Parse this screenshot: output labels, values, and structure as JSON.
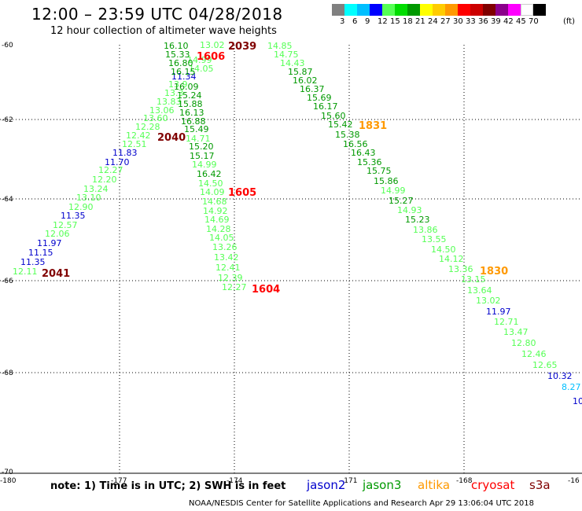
{
  "header": {
    "title": "12:00 – 23:59 UTC 04/28/2018",
    "subtitle": "12 hour collection of altimeter wave heights"
  },
  "legend": {
    "colors": [
      "#808080",
      "#00ffff",
      "#00bfff",
      "#0000ff",
      "#55ff55",
      "#00dd00",
      "#009900",
      "#ffff00",
      "#ffcc00",
      "#ff9900",
      "#ff0000",
      "#cc0000",
      "#800000",
      "#8b008b",
      "#ff00ff",
      "#ffffff",
      "#000000"
    ],
    "labels": [
      "3",
      "6",
      "9",
      "12",
      "15",
      "18",
      "21",
      "24",
      "27",
      "30",
      "33",
      "36",
      "39",
      "42",
      "45",
      "70",
      "(ft)"
    ]
  },
  "axes": {
    "lat_labels": [
      "-60",
      "-62",
      "-64",
      "-66",
      "-68",
      "-70"
    ],
    "lon_labels": [
      "-180",
      "-177",
      "-174",
      "-171",
      "-168",
      "-16"
    ]
  },
  "footer": {
    "note": "note: 1) Time is in UTC; 2) SWH is in feet",
    "satellites": [
      {
        "name": "jason2",
        "color": "#0000cc"
      },
      {
        "name": "jason3",
        "color": "#009900"
      },
      {
        "name": "altika",
        "color": "#ff9900"
      },
      {
        "name": "cryosat",
        "color": "#ff0000"
      },
      {
        "name": "s3a",
        "color": "#800000"
      }
    ],
    "credit": "NOAA/NESDIS Center for Satellite Applications and Research    Apr 29 13:06:04 UTC 2018"
  },
  "time_labels": [
    {
      "text": "2039",
      "color": "#800000"
    },
    {
      "text": "1606",
      "color": "#ff0000"
    },
    {
      "text": "2040",
      "color": "#800000"
    },
    {
      "text": "1605",
      "color": "#ff0000"
    },
    {
      "text": "1831",
      "color": "#ff9900"
    },
    {
      "text": "2041",
      "color": "#800000"
    },
    {
      "text": "1604",
      "color": "#ff0000"
    },
    {
      "text": "1830",
      "color": "#ff9900"
    }
  ],
  "track_a": {
    "name": "s3a pass 2039-2041",
    "values": [
      {
        "v": "13.02",
        "c": "#55ff55"
      },
      {
        "v": "14.99",
        "c": "#55ff55"
      },
      {
        "v": "14.05",
        "c": "#55ff55"
      },
      {
        "v": "11.34",
        "c": "#0000cc"
      },
      {
        "v": "13.9",
        "c": "#55ff55"
      },
      {
        "v": "13.3",
        "c": "#55ff55"
      },
      {
        "v": "13.83",
        "c": "#55ff55"
      },
      {
        "v": "13.06",
        "c": "#55ff55"
      },
      {
        "v": "13.60",
        "c": "#55ff55"
      },
      {
        "v": "12.28",
        "c": "#55ff55"
      },
      {
        "v": "12.42",
        "c": "#55ff55"
      },
      {
        "v": "12.51",
        "c": "#55ff55"
      },
      {
        "v": "11.83",
        "c": "#0000cc"
      },
      {
        "v": "11.70",
        "c": "#0000cc"
      },
      {
        "v": "12.27",
        "c": "#55ff55"
      },
      {
        "v": "12.20",
        "c": "#55ff55"
      },
      {
        "v": "13.24",
        "c": "#55ff55"
      },
      {
        "v": "13.10",
        "c": "#55ff55"
      },
      {
        "v": "12.90",
        "c": "#55ff55"
      },
      {
        "v": "11.35",
        "c": "#0000cc"
      },
      {
        "v": "12.57",
        "c": "#55ff55"
      },
      {
        "v": "12.06",
        "c": "#55ff55"
      },
      {
        "v": "11.97",
        "c": "#0000cc"
      },
      {
        "v": "11.15",
        "c": "#0000cc"
      },
      {
        "v": "11.35",
        "c": "#0000cc"
      },
      {
        "v": "12.11",
        "c": "#55ff55"
      }
    ]
  },
  "track_b": {
    "name": "jason3 pass 1604-1606",
    "values": [
      {
        "v": "16.10",
        "c": "#009900"
      },
      {
        "v": "15.33",
        "c": "#009900"
      },
      {
        "v": "16.80",
        "c": "#009900"
      },
      {
        "v": "16.15",
        "c": "#009900"
      },
      {
        "v": "16.09",
        "c": "#009900"
      },
      {
        "v": "15.24",
        "c": "#009900"
      },
      {
        "v": "15.88",
        "c": "#009900"
      },
      {
        "v": "16.13",
        "c": "#009900"
      },
      {
        "v": "16.88",
        "c": "#009900"
      },
      {
        "v": "15.49",
        "c": "#009900"
      },
      {
        "v": "14.71",
        "c": "#55ff55"
      },
      {
        "v": "15.20",
        "c": "#009900"
      },
      {
        "v": "15.17",
        "c": "#009900"
      },
      {
        "v": "14.99",
        "c": "#55ff55"
      },
      {
        "v": "16.42",
        "c": "#009900"
      },
      {
        "v": "14.50",
        "c": "#55ff55"
      },
      {
        "v": "14.09",
        "c": "#55ff55"
      },
      {
        "v": "14.68",
        "c": "#55ff55"
      },
      {
        "v": "14.92",
        "c": "#55ff55"
      },
      {
        "v": "14.69",
        "c": "#55ff55"
      },
      {
        "v": "14.28",
        "c": "#55ff55"
      },
      {
        "v": "14.05",
        "c": "#55ff55"
      },
      {
        "v": "13.26",
        "c": "#55ff55"
      },
      {
        "v": "13.42",
        "c": "#55ff55"
      },
      {
        "v": "12.41",
        "c": "#55ff55"
      },
      {
        "v": "12.39",
        "c": "#55ff55"
      },
      {
        "v": "12.27",
        "c": "#55ff55"
      }
    ]
  },
  "track_c": {
    "name": "altika pass 1830-1831",
    "values": [
      {
        "v": "14.85",
        "c": "#55ff55"
      },
      {
        "v": "14.75",
        "c": "#55ff55"
      },
      {
        "v": "14.43",
        "c": "#55ff55"
      },
      {
        "v": "15.87",
        "c": "#009900"
      },
      {
        "v": "16.02",
        "c": "#009900"
      },
      {
        "v": "16.37",
        "c": "#009900"
      },
      {
        "v": "15.69",
        "c": "#009900"
      },
      {
        "v": "16.17",
        "c": "#009900"
      },
      {
        "v": "15.60",
        "c": "#009900"
      },
      {
        "v": "15.42",
        "c": "#009900"
      },
      {
        "v": "15.38",
        "c": "#009900"
      },
      {
        "v": "16.56",
        "c": "#009900"
      },
      {
        "v": "16.43",
        "c": "#009900"
      },
      {
        "v": "15.36",
        "c": "#009900"
      },
      {
        "v": "15.75",
        "c": "#009900"
      },
      {
        "v": "15.86",
        "c": "#009900"
      },
      {
        "v": "14.99",
        "c": "#55ff55"
      },
      {
        "v": "15.27",
        "c": "#009900"
      },
      {
        "v": "14.93",
        "c": "#55ff55"
      },
      {
        "v": "15.23",
        "c": "#009900"
      },
      {
        "v": "13.86",
        "c": "#55ff55"
      },
      {
        "v": "13.55",
        "c": "#55ff55"
      },
      {
        "v": "14.50",
        "c": "#55ff55"
      },
      {
        "v": "14.12",
        "c": "#55ff55"
      },
      {
        "v": "13.36",
        "c": "#55ff55"
      },
      {
        "v": "13.15",
        "c": "#55ff55"
      },
      {
        "v": "13.64",
        "c": "#55ff55"
      },
      {
        "v": "13.02",
        "c": "#55ff55"
      },
      {
        "v": "11.97",
        "c": "#0000cc"
      },
      {
        "v": "12.71",
        "c": "#55ff55"
      },
      {
        "v": "13.47",
        "c": "#55ff55"
      },
      {
        "v": "12.80",
        "c": "#55ff55"
      },
      {
        "v": "12.46",
        "c": "#55ff55"
      },
      {
        "v": "12.65",
        "c": "#55ff55"
      },
      {
        "v": "10.32",
        "c": "#0000cc"
      },
      {
        "v": "8.27",
        "c": "#00bfff"
      },
      {
        "v": "10",
        "c": "#0000cc"
      }
    ]
  }
}
